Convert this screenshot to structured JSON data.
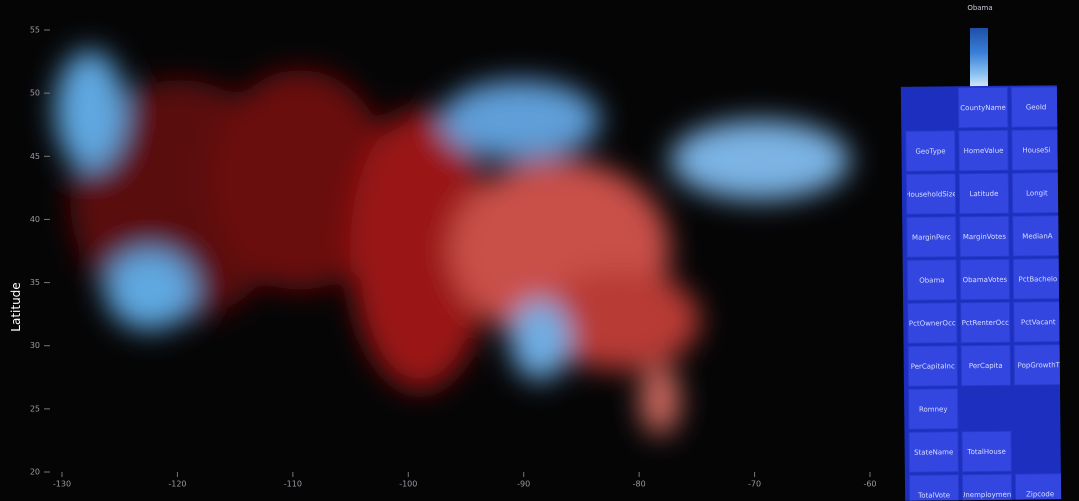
{
  "y_axis": {
    "label": "Latitude",
    "ticks": [
      55,
      50,
      45,
      40,
      35,
      30,
      25,
      20
    ]
  },
  "x_axis": {
    "ticks": [
      -130,
      -120,
      -110,
      -100,
      -90,
      -80,
      -70,
      -60
    ]
  },
  "legend": {
    "title": "Obama"
  },
  "field_tiles": [
    [
      "CountyName",
      "GeoId"
    ],
    [
      "GeoType",
      "HomeValue",
      "HouseSi"
    ],
    [
      "HouseholdSize",
      "Latitude",
      "Longit"
    ],
    [
      "MarginPerc",
      "MarginVotes",
      "MedianA"
    ],
    [
      "Obama",
      "ObamaVotes",
      "PctBachelo"
    ],
    [
      "PctOwnerOcc",
      "PctRenterOcc",
      "PctVacant"
    ],
    [
      "PerCapitaInc",
      "PerCapita",
      "PopGrowthT"
    ],
    [
      "Romney"
    ],
    [
      "StateName",
      "TotalHouse"
    ],
    [
      "TotalVote",
      "Unemployment",
      "Zipcode"
    ]
  ]
}
